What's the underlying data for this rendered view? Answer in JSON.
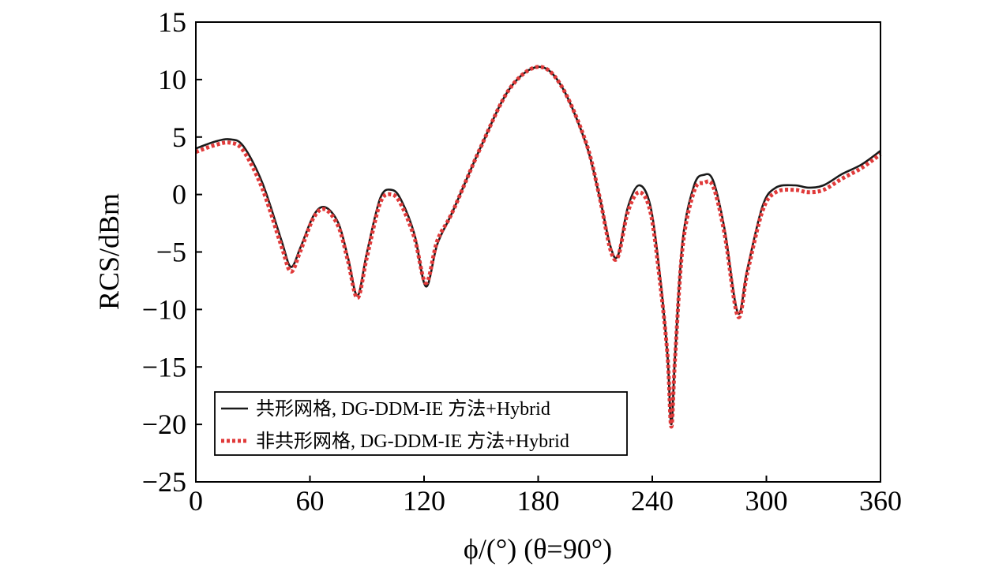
{
  "chart_data": {
    "type": "line",
    "xlabel": "ϕ/(°) (θ=90°)",
    "ylabel": "RCS/dBm",
    "xlim": [
      0,
      360
    ],
    "ylim": [
      -25,
      15
    ],
    "xticks": [
      "0",
      "60",
      "120",
      "180",
      "240",
      "300",
      "360"
    ],
    "yticks": [
      "15",
      "10",
      "5",
      "0",
      "−5",
      "−10",
      "−15",
      "−20",
      "−25"
    ],
    "grid": false,
    "legend_position": "lower-left",
    "series": [
      {
        "name": "共形网格, DG-DDM-IE 方法+Hybrid",
        "color": "#1a1a1a",
        "style": "solid",
        "x": [
          0,
          10,
          18,
          25,
          35,
          45,
          50,
          55,
          62,
          68,
          75,
          80,
          85,
          90,
          97,
          103,
          108,
          115,
          121,
          127,
          135,
          150,
          165,
          180,
          192,
          205,
          212,
          218,
          222,
          227,
          233,
          239,
          244,
          248,
          250,
          252,
          256,
          262,
          267,
          272,
          278,
          285,
          290,
          298,
          305,
          315,
          322,
          330,
          340,
          350,
          360
        ],
        "y": [
          4.0,
          4.6,
          4.8,
          4.2,
          1.0,
          -4.0,
          -6.3,
          -4.6,
          -1.8,
          -1.1,
          -2.5,
          -5.5,
          -8.8,
          -5.0,
          -0.3,
          0.4,
          -0.5,
          -3.5,
          -8.0,
          -4.3,
          -1.5,
          4.2,
          9.2,
          11.1,
          9.5,
          4.5,
          0.0,
          -4.5,
          -5.3,
          -1.2,
          0.8,
          -1.0,
          -7.0,
          -14.0,
          -20.0,
          -14.0,
          -4.0,
          0.8,
          1.7,
          1.2,
          -3.0,
          -10.3,
          -6.5,
          -1.0,
          0.6,
          0.8,
          0.6,
          0.8,
          1.8,
          2.6,
          3.8
        ]
      },
      {
        "name": "非共形网格, DG-DDM-IE 方法+Hybrid",
        "color": "#e03a3a",
        "style": "dotted",
        "x": [
          0,
          10,
          18,
          25,
          35,
          45,
          50,
          55,
          62,
          68,
          75,
          80,
          85,
          90,
          97,
          103,
          108,
          115,
          121,
          127,
          135,
          150,
          165,
          180,
          192,
          205,
          212,
          218,
          222,
          227,
          233,
          239,
          244,
          248,
          250,
          252,
          256,
          262,
          267,
          272,
          278,
          285,
          290,
          298,
          305,
          315,
          322,
          330,
          340,
          350,
          360
        ],
        "y": [
          3.7,
          4.3,
          4.5,
          3.8,
          0.5,
          -4.5,
          -6.7,
          -4.9,
          -2.0,
          -1.3,
          -2.8,
          -5.8,
          -9.0,
          -5.4,
          -0.7,
          0.0,
          -0.9,
          -3.8,
          -7.7,
          -4.0,
          -1.5,
          4.2,
          9.2,
          11.1,
          9.5,
          4.6,
          0.0,
          -4.8,
          -5.4,
          -1.6,
          0.2,
          -1.5,
          -7.5,
          -14.0,
          -20.2,
          -14.2,
          -4.5,
          0.3,
          1.0,
          0.7,
          -3.4,
          -10.6,
          -6.8,
          -1.4,
          0.2,
          0.4,
          0.2,
          0.4,
          1.4,
          2.3,
          3.5
        ]
      }
    ]
  }
}
